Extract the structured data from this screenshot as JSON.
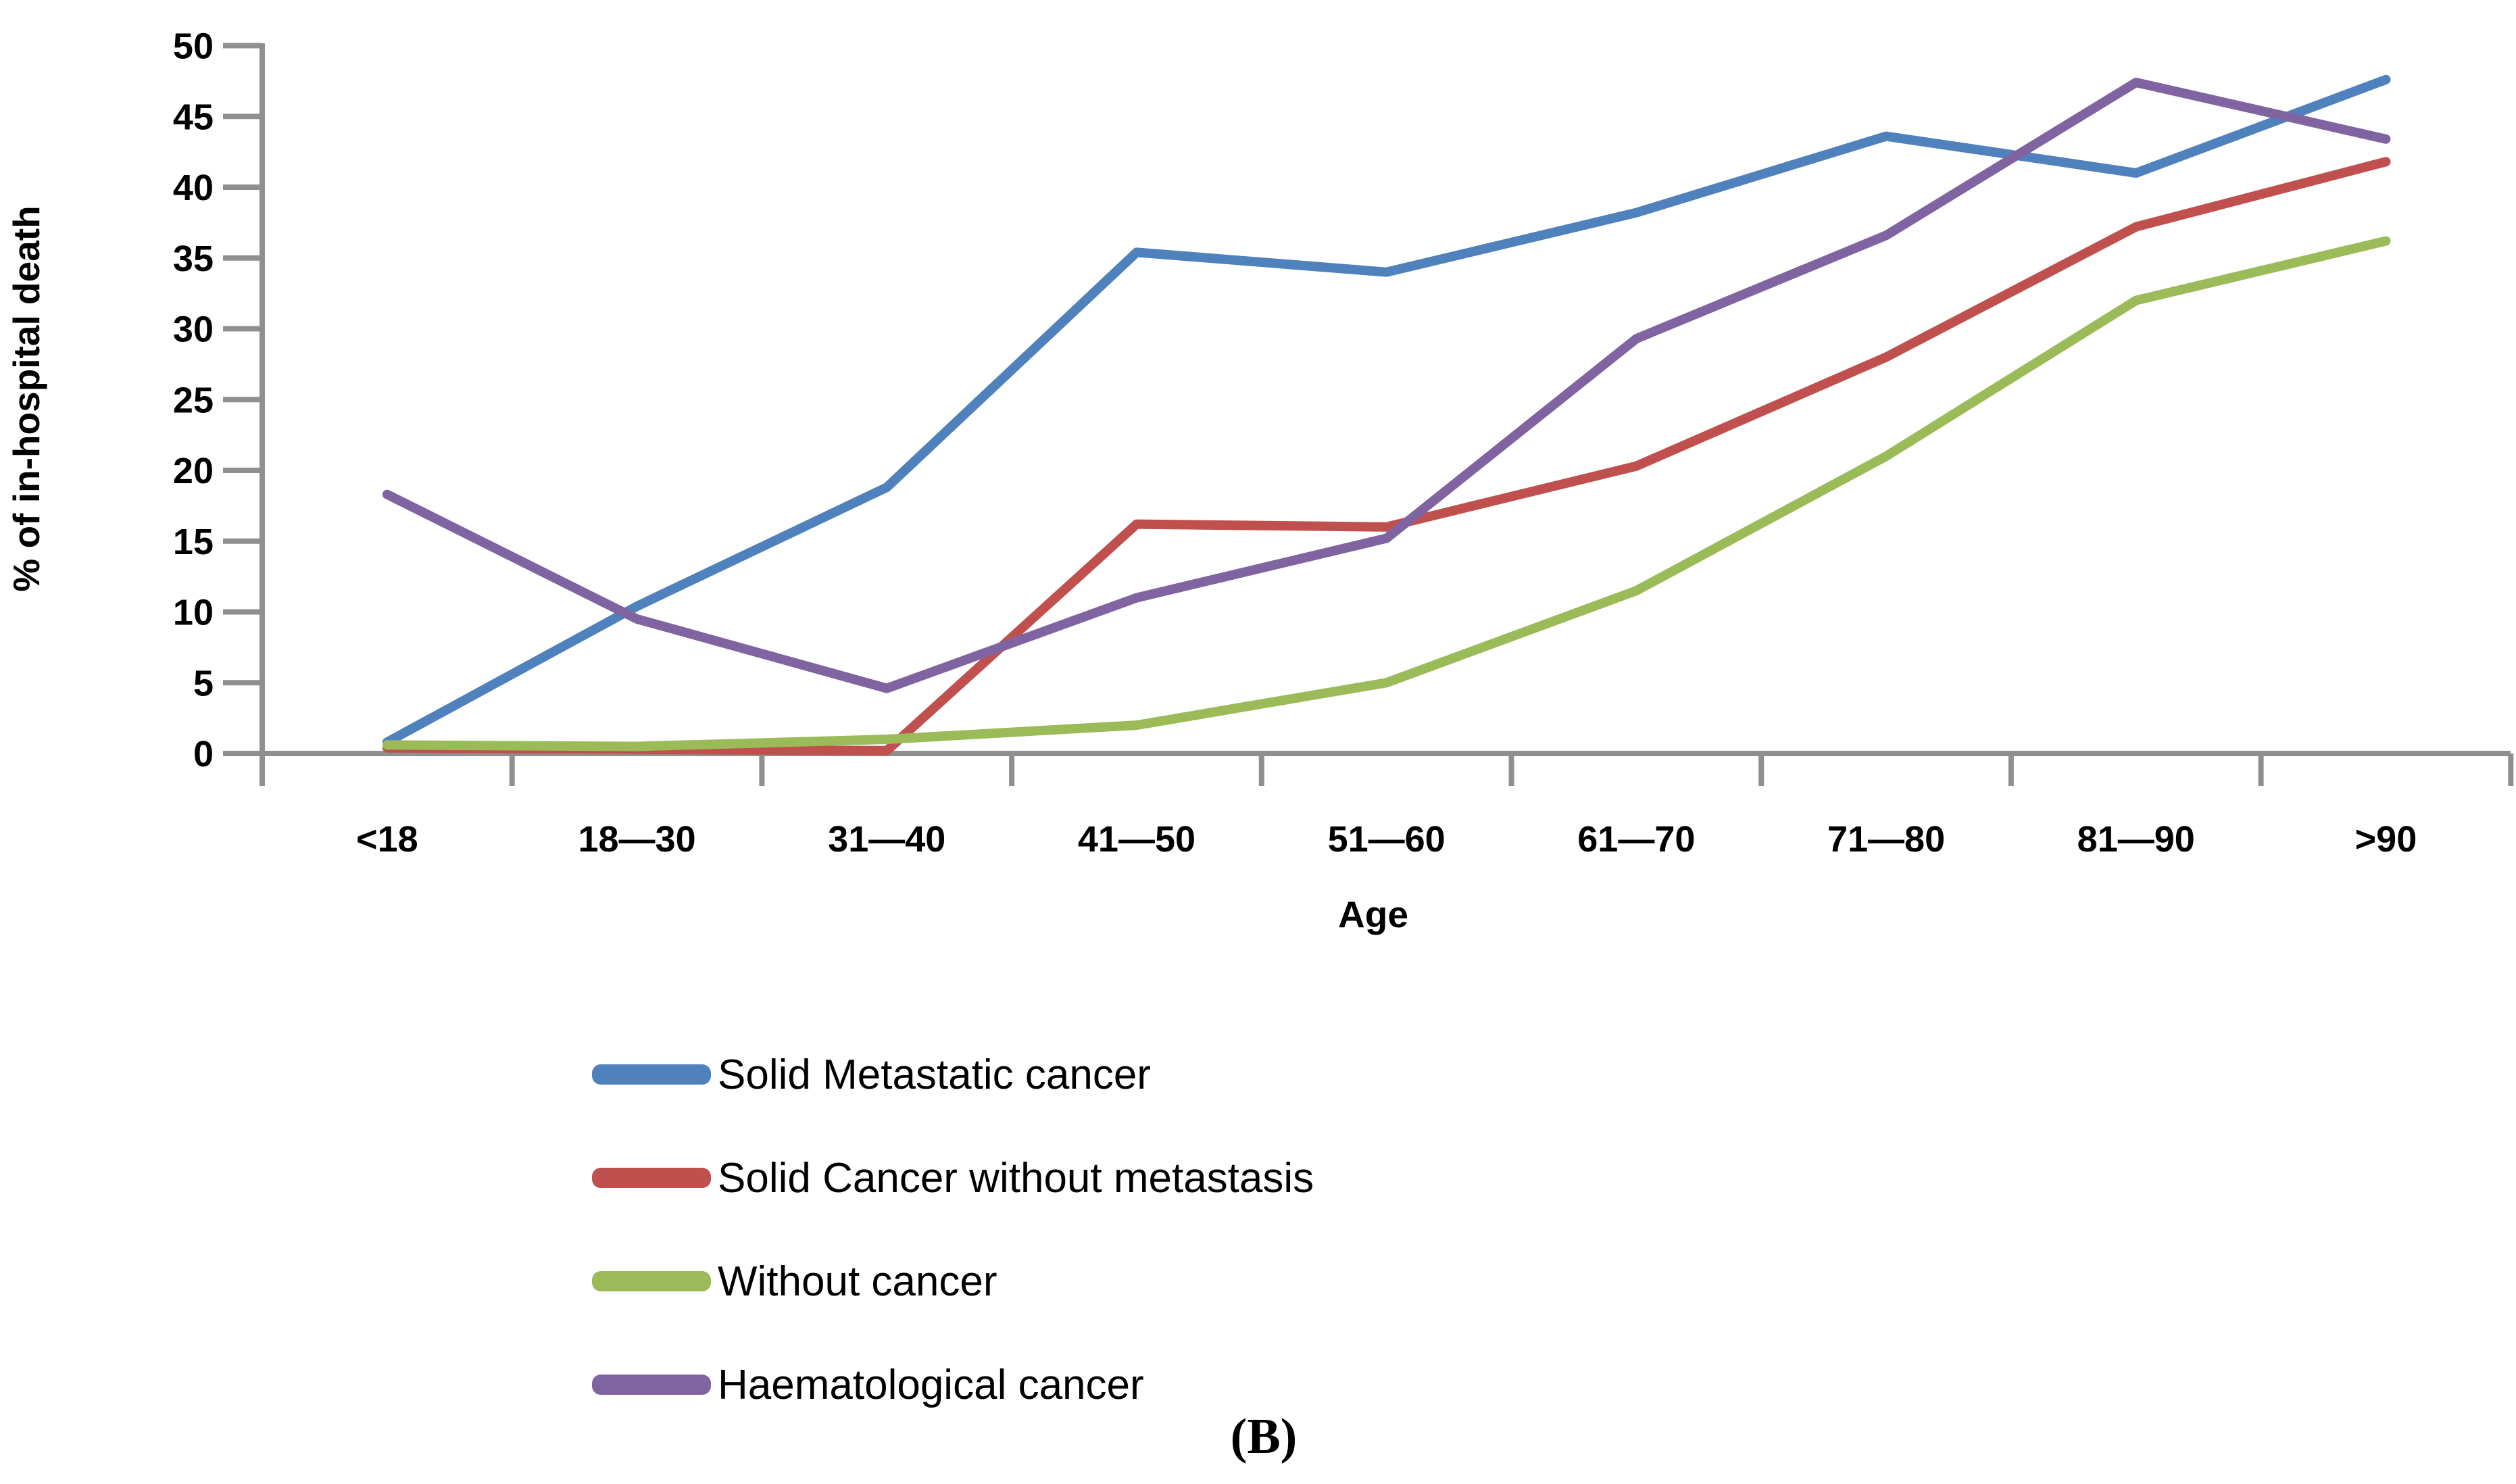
{
  "figure": {
    "caption": "(B)"
  },
  "chart_data": {
    "type": "line",
    "title": "",
    "xlabel": "Age",
    "ylabel": "% of in-hospital death",
    "categories": [
      "<18",
      "18—30",
      "31—40",
      "41—50",
      "51—60",
      "61—70",
      "71—80",
      "81—90",
      ">90"
    ],
    "ylim": [
      0,
      50
    ],
    "yticks": [
      0,
      5,
      10,
      15,
      20,
      25,
      30,
      35,
      40,
      45,
      50
    ],
    "grid": false,
    "legend_position": "bottom-left",
    "axis_color": "#8F8F8F",
    "text_color": "#000000",
    "series": [
      {
        "name": "Solid Metastatic cancer",
        "color": "#4F81BD",
        "values": [
          0.8,
          10.4,
          18.8,
          35.4,
          34.0,
          38.2,
          43.6,
          41.0,
          47.6
        ]
      },
      {
        "name": "Solid Cancer without metastasis",
        "color": "#C0504D",
        "values": [
          0.4,
          0.3,
          0.2,
          16.2,
          16.0,
          20.3,
          28.0,
          37.2,
          41.8
        ]
      },
      {
        "name": "Without cancer",
        "color": "#9BBB59",
        "values": [
          0.6,
          0.5,
          1.0,
          2.0,
          5.0,
          11.5,
          21.0,
          32.0,
          36.2
        ]
      },
      {
        "name": "Haematological cancer",
        "color": "#8064A2",
        "values": [
          18.3,
          9.5,
          4.6,
          11.0,
          15.2,
          29.3,
          36.6,
          47.4,
          43.4
        ]
      }
    ]
  }
}
